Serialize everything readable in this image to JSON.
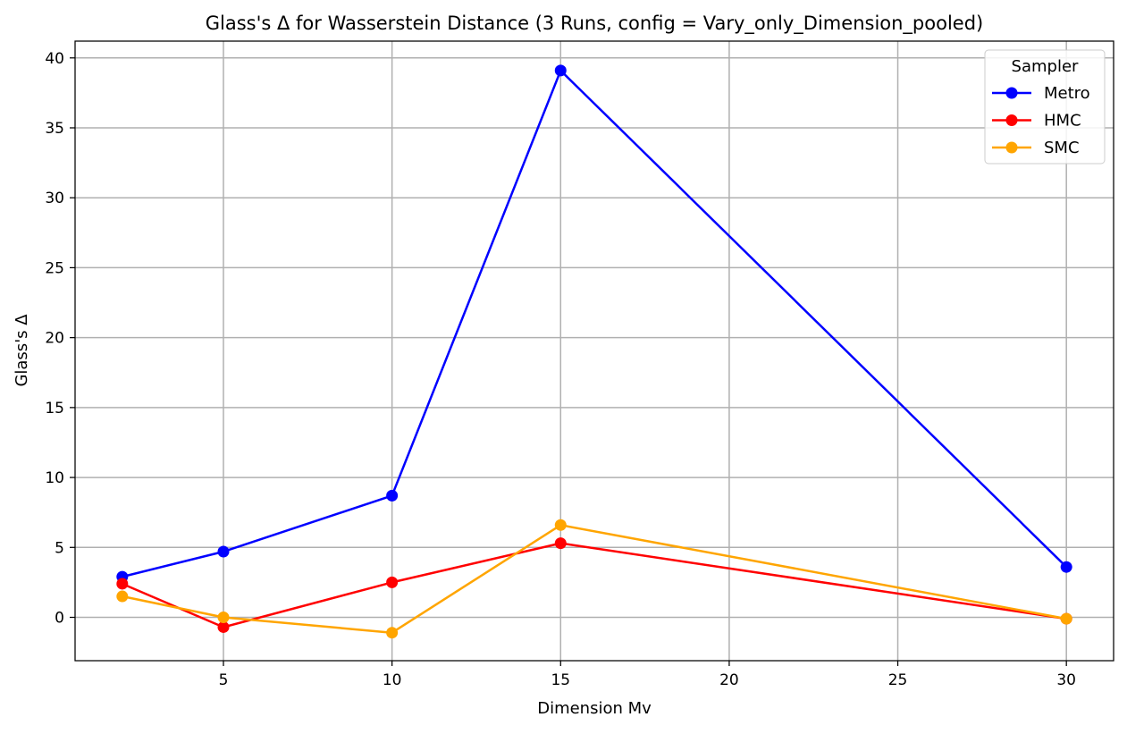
{
  "chart_data": {
    "type": "line",
    "title": "Glass's Δ for Wasserstein Distance (3 Runs, config = Vary_only_Dimension_pooled)",
    "xlabel": "Dimension Mv",
    "ylabel": "Glass's Δ",
    "x": [
      2,
      5,
      10,
      15,
      30
    ],
    "xlim": [
      0.6,
      31.4
    ],
    "ylim": [
      -3.1,
      41.2
    ],
    "xticks": [
      5,
      10,
      15,
      20,
      25,
      30
    ],
    "yticks": [
      0,
      5,
      10,
      15,
      20,
      25,
      30,
      35,
      40
    ],
    "grid": true,
    "legend": {
      "title": "Sampler",
      "placement": "top-right"
    },
    "series": [
      {
        "name": "Metro",
        "color": "#0000ff",
        "values": [
          2.9,
          4.7,
          8.7,
          39.1,
          3.6
        ]
      },
      {
        "name": "HMC",
        "color": "#ff0000",
        "values": [
          2.4,
          -0.7,
          2.5,
          5.3,
          -0.1
        ]
      },
      {
        "name": "SMC",
        "color": "#ffa500",
        "values": [
          1.5,
          0.0,
          -1.1,
          6.6,
          -0.1
        ]
      }
    ]
  }
}
